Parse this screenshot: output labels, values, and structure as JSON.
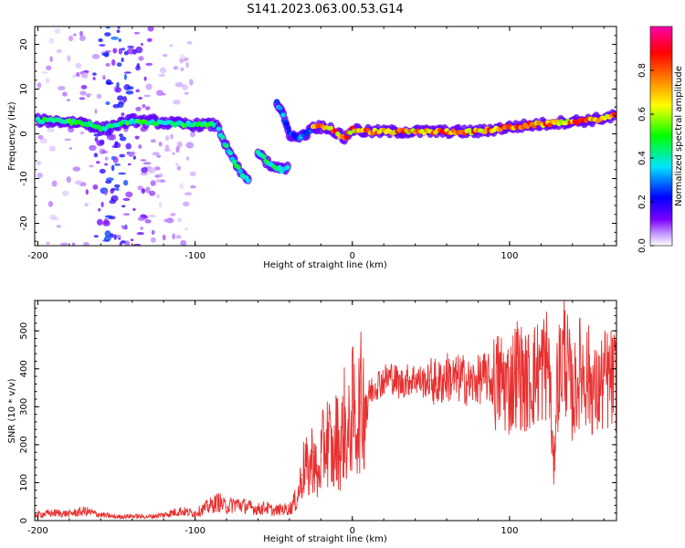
{
  "figure": {
    "title": "S141.2023.063.00.53.G14"
  },
  "colorbar": {
    "label": "Normalized spectral amplitude",
    "ticks": [
      "0.0",
      "0.2",
      "0.4",
      "0.6",
      "0.8"
    ],
    "colors": [
      "#ffffff",
      "#7a00ff",
      "#0000ff",
      "#00e5ff",
      "#00ff00",
      "#ffff00",
      "#ff7f00",
      "#ff0000",
      "#ff00aa"
    ]
  },
  "chart_data": [
    {
      "type": "heatmap",
      "title": "",
      "xlabel": "Height of straight line (km)",
      "ylabel": "Frequency (Hz)",
      "xlim": [
        -202,
        168
      ],
      "ylim": [
        -25,
        24
      ],
      "xticks": [
        "-200",
        "-100",
        "0",
        "100"
      ],
      "xtick_values": [
        -200,
        -100,
        0,
        100
      ],
      "yticks": [
        "20",
        "10",
        "0",
        "-10",
        "-20"
      ],
      "ytick_values": [
        20,
        10,
        0,
        -10,
        -20
      ],
      "ridges": [
        {
          "points": [
            [
              -200,
              3
            ],
            [
              -170,
              2.5
            ],
            [
              -160,
              1
            ],
            [
              -150,
              2
            ],
            [
              -140,
              3
            ],
            [
              -120,
              2.5
            ],
            [
              -100,
              2
            ],
            [
              -85,
              2
            ]
          ],
          "amplitude": 0.45
        },
        {
          "points": [
            [
              -85,
              1
            ],
            [
              -80,
              -3
            ],
            [
              -75,
              -6
            ],
            [
              -70,
              -9
            ],
            [
              -65,
              -11
            ]
          ],
          "amplitude": 0.4
        },
        {
          "points": [
            [
              -60,
              -4
            ],
            [
              -55,
              -6
            ],
            [
              -50,
              -7.5
            ],
            [
              -45,
              -8
            ],
            [
              -40,
              -7
            ]
          ],
          "amplitude": 0.4
        },
        {
          "points": [
            [
              -48,
              7
            ],
            [
              -44,
              4
            ],
            [
              -40,
              0
            ],
            [
              -35,
              -1
            ],
            [
              -30,
              0
            ],
            [
              -25,
              1
            ]
          ],
          "amplitude": 0.3
        },
        {
          "points": [
            [
              -25,
              1.5
            ],
            [
              -15,
              1.5
            ],
            [
              -5,
              -1
            ],
            [
              0,
              1
            ],
            [
              10,
              0.5
            ],
            [
              30,
              0.5
            ],
            [
              60,
              0.5
            ],
            [
              80,
              0.5
            ],
            [
              100,
              1.5
            ],
            [
              130,
              2.5
            ],
            [
              150,
              3
            ],
            [
              168,
              4
            ]
          ],
          "amplitude": 0.75
        }
      ],
      "scatter_band": {
        "x_range": [
          -200,
          -100
        ],
        "y_range": [
          -25,
          24
        ],
        "amplitude": 0.15
      }
    },
    {
      "type": "line",
      "title": "",
      "xlabel": "Height of straight line (km)",
      "ylabel": "SNR (10 * v/v)",
      "xlim": [
        -202,
        168
      ],
      "ylim": [
        0,
        580
      ],
      "xticks": [
        "-200",
        "-100",
        "0",
        "100"
      ],
      "xtick_values": [
        -200,
        -100,
        0,
        100
      ],
      "yticks": [
        "0",
        "100",
        "200",
        "300",
        "400",
        "500"
      ],
      "ytick_values": [
        0,
        100,
        200,
        300,
        400,
        500
      ],
      "color": "#e83030",
      "series": [
        {
          "name": "",
          "x": [
            -202,
            -190,
            -180,
            -170,
            -160,
            -150,
            -140,
            -130,
            -120,
            -110,
            -100,
            -95,
            -90,
            -85,
            -80,
            -75,
            -70,
            -65,
            -60,
            -55,
            -50,
            -45,
            -40,
            -35,
            -32,
            -30,
            -28,
            -25,
            -22,
            -20,
            -18,
            -15,
            -12,
            -10,
            -8,
            -5,
            -3,
            0,
            2,
            5,
            10,
            15,
            20,
            25,
            30,
            35,
            40,
            45,
            50,
            55,
            60,
            65,
            70,
            75,
            80,
            85,
            90,
            95,
            100,
            105,
            110,
            115,
            120,
            125,
            128,
            130,
            135,
            140,
            145,
            150,
            155,
            160,
            168
          ],
          "y": [
            15,
            20,
            18,
            25,
            15,
            10,
            12,
            10,
            15,
            25,
            20,
            30,
            40,
            50,
            35,
            45,
            40,
            35,
            30,
            35,
            25,
            30,
            30,
            60,
            120,
            150,
            120,
            180,
            100,
            160,
            200,
            220,
            150,
            230,
            180,
            260,
            200,
            300,
            250,
            310,
            330,
            360,
            370,
            380,
            360,
            370,
            375,
            365,
            370,
            360,
            380,
            370,
            375,
            360,
            370,
            380,
            360,
            370,
            350,
            400,
            360,
            380,
            400,
            420,
            120,
            360,
            450,
            320,
            400,
            380,
            330,
            370,
            370
          ]
        }
      ]
    }
  ]
}
